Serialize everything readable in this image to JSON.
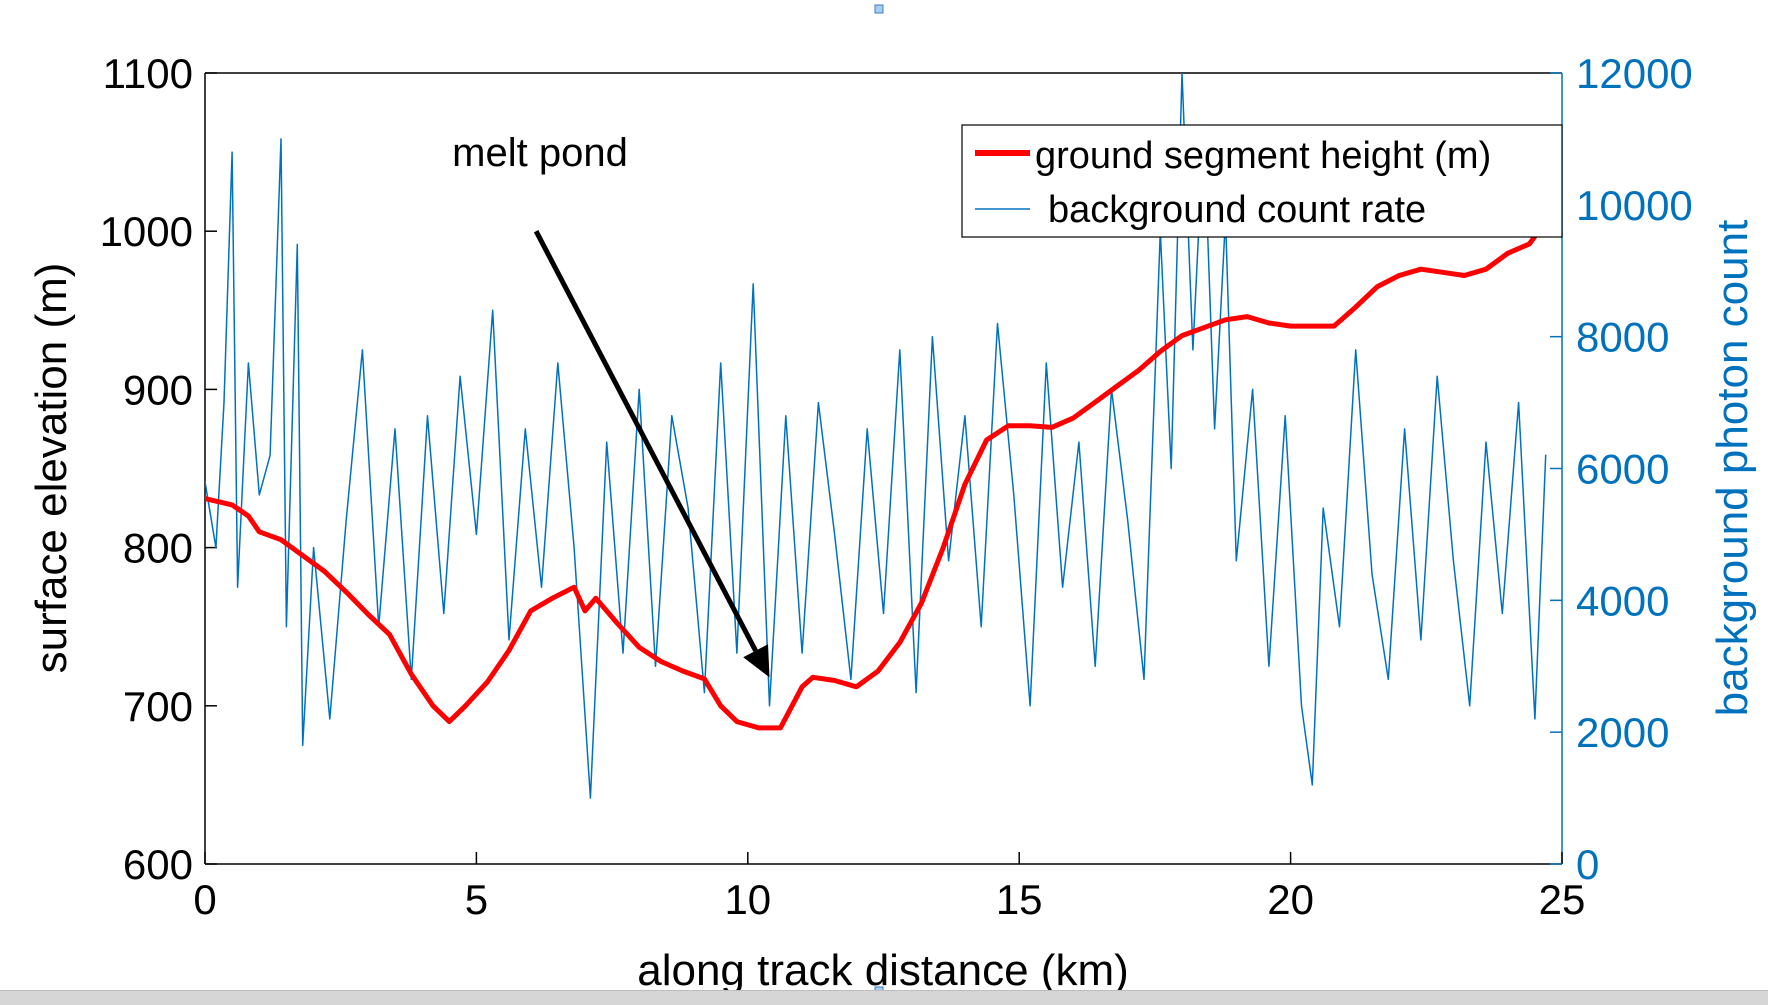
{
  "chart_data": {
    "type": "line",
    "xlabel": "along track distance (km)",
    "xlim": [
      0,
      25
    ],
    "xticks": [
      0,
      5,
      10,
      15,
      20,
      25
    ],
    "y_left": {
      "label": "surface elevation (m)",
      "lim": [
        600,
        1100
      ],
      "ticks": [
        600,
        700,
        800,
        900,
        1000,
        1100
      ],
      "color": "#000000"
    },
    "y_right": {
      "label": "background photon count",
      "lim": [
        0,
        12000
      ],
      "ticks": [
        0,
        2000,
        4000,
        6000,
        8000,
        10000,
        12000
      ],
      "color": "#0072BD"
    },
    "legend": {
      "placement": "top-right",
      "entries": [
        {
          "label": "ground segment height (m)",
          "color": "#FF0000"
        },
        {
          "label": "background count rate",
          "color": "#0072BD"
        }
      ]
    },
    "annotation": {
      "text": "melt pond",
      "arrow_from": [
        6.1,
        1000
      ],
      "arrow_to": [
        10.4,
        718
      ]
    },
    "grid": false,
    "series": [
      {
        "name": "ground segment height (m)",
        "axis": "left",
        "color": "#FF0000",
        "x": [
          0,
          0.5,
          0.8,
          1.0,
          1.4,
          1.8,
          2.2,
          2.6,
          3.0,
          3.4,
          3.8,
          4.2,
          4.5,
          4.8,
          5.2,
          5.6,
          6.0,
          6.4,
          6.8,
          7.0,
          7.2,
          7.6,
          8.0,
          8.4,
          8.8,
          9.2,
          9.5,
          9.8,
          10.2,
          10.6,
          11.0,
          11.2,
          11.6,
          12.0,
          12.4,
          12.8,
          13.2,
          13.6,
          14.0,
          14.4,
          14.8,
          15.2,
          15.6,
          16.0,
          16.4,
          16.8,
          17.2,
          17.6,
          18.0,
          18.4,
          18.8,
          19.2,
          19.6,
          20.0,
          20.4,
          20.8,
          21.2,
          21.6,
          22.0,
          22.4,
          22.8,
          23.2,
          23.6,
          24.0,
          24.4,
          24.7
        ],
        "y": [
          831,
          827,
          820,
          810,
          805,
          795,
          785,
          772,
          758,
          745,
          720,
          700,
          690,
          700,
          715,
          735,
          760,
          768,
          775,
          760,
          768,
          752,
          737,
          728,
          722,
          717,
          700,
          690,
          686,
          686,
          712,
          718,
          716,
          712,
          722,
          740,
          765,
          800,
          840,
          868,
          877,
          877,
          876,
          882,
          892,
          902,
          912,
          924,
          934,
          939,
          944,
          946,
          942,
          940,
          940,
          940,
          952,
          965,
          972,
          976,
          974,
          972,
          976,
          986,
          992,
          1006
        ]
      },
      {
        "name": "background count rate",
        "axis": "right",
        "color": "#0072BD",
        "x": [
          0.0,
          0.2,
          0.35,
          0.5,
          0.6,
          0.8,
          1.0,
          1.2,
          1.4,
          1.5,
          1.7,
          1.8,
          2.0,
          2.3,
          2.6,
          2.9,
          3.2,
          3.5,
          3.8,
          4.1,
          4.4,
          4.7,
          5.0,
          5.3,
          5.6,
          5.9,
          6.2,
          6.5,
          6.8,
          7.1,
          7.4,
          7.7,
          8.0,
          8.3,
          8.6,
          8.9,
          9.2,
          9.5,
          9.8,
          10.1,
          10.4,
          10.7,
          11.0,
          11.3,
          11.6,
          11.9,
          12.2,
          12.5,
          12.8,
          13.1,
          13.4,
          13.7,
          14.0,
          14.3,
          14.6,
          14.9,
          15.2,
          15.5,
          15.8,
          16.1,
          16.4,
          16.7,
          17.0,
          17.3,
          17.6,
          17.8,
          18.0,
          18.2,
          18.4,
          18.6,
          18.8,
          19.0,
          19.3,
          19.6,
          19.9,
          20.2,
          20.4,
          20.6,
          20.9,
          21.2,
          21.5,
          21.8,
          22.1,
          22.4,
          22.7,
          23.0,
          23.3,
          23.6,
          23.9,
          24.2,
          24.5,
          24.7
        ],
        "y": [
          5800,
          4800,
          7000,
          10800,
          4200,
          7600,
          5600,
          6200,
          11000,
          3600,
          9400,
          1800,
          4800,
          2200,
          5200,
          7800,
          3600,
          6600,
          2800,
          6800,
          3800,
          7400,
          5000,
          8400,
          3400,
          6600,
          4200,
          7600,
          4800,
          1000,
          6400,
          3200,
          7200,
          3000,
          6800,
          5400,
          2600,
          7600,
          3200,
          8800,
          2400,
          6800,
          3200,
          7000,
          5000,
          2800,
          6600,
          3800,
          7800,
          2600,
          8000,
          4600,
          6800,
          3600,
          8200,
          5600,
          2400,
          7600,
          4200,
          6400,
          3000,
          7200,
          5200,
          2800,
          9600,
          6000,
          12000,
          7800,
          11200,
          6600,
          9800,
          4600,
          7200,
          3000,
          6800,
          2400,
          1200,
          5400,
          3600,
          7800,
          4400,
          2800,
          6600,
          3400,
          7400,
          4600,
          2400,
          6400,
          3800,
          7000,
          2200,
          6200
        ]
      }
    ]
  }
}
